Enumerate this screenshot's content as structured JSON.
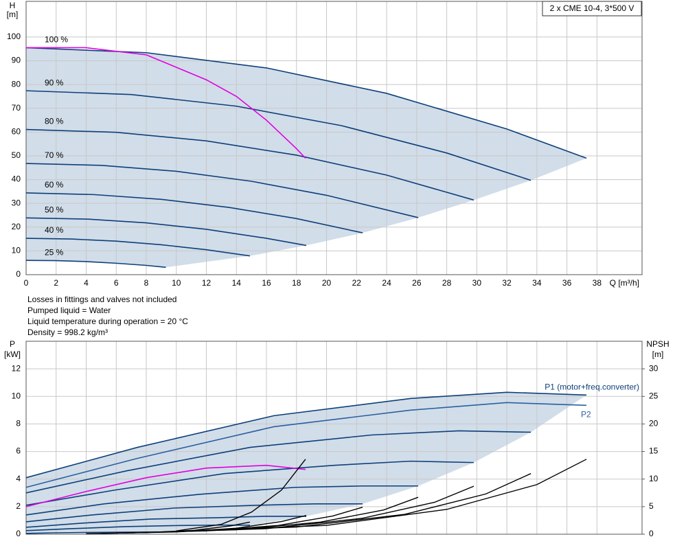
{
  "chart_data": [
    {
      "type": "line",
      "y_label": "H",
      "y_unit": "[m]",
      "x_label": "Q [m³/h]",
      "annotation": "2 x CME 10-4, 3*500 V",
      "xlim": [
        0,
        41
      ],
      "xticks": [
        0,
        2,
        4,
        6,
        8,
        10,
        12,
        14,
        16,
        18,
        20,
        22,
        24,
        26,
        28,
        30,
        32,
        34,
        36,
        38
      ],
      "ylim": [
        0,
        115
      ],
      "yticks": [
        0,
        10,
        20,
        30,
        40,
        50,
        60,
        70,
        80,
        90,
        100
      ],
      "grid": true,
      "region_color": "#c9d7e5",
      "series": [
        {
          "name": "100 %",
          "color": "#0d3f7a",
          "x": [
            0,
            8,
            16,
            24,
            32,
            37.3
          ],
          "values": [
            95.5,
            93.4,
            87.0,
            76.3,
            61.3,
            49.0
          ]
        },
        {
          "name": "90 %",
          "color": "#0d3f7a",
          "x": [
            0,
            7,
            14,
            21,
            28,
            33.6
          ],
          "values": [
            77.4,
            75.8,
            70.9,
            62.7,
            51.2,
            39.7
          ]
        },
        {
          "name": "80 %",
          "color": "#0d3f7a",
          "x": [
            0,
            6,
            12,
            18,
            24,
            29.8
          ],
          "values": [
            61.1,
            59.9,
            56.3,
            50.3,
            41.9,
            31.4
          ]
        },
        {
          "name": "70 %",
          "color": "#0d3f7a",
          "x": [
            0,
            5,
            10,
            15,
            20,
            26.1
          ],
          "values": [
            46.8,
            46.0,
            43.5,
            39.3,
            33.4,
            24.0
          ]
        },
        {
          "name": "60 %",
          "color": "#0d3f7a",
          "x": [
            0,
            4.5,
            9,
            13.5,
            18,
            22.4
          ],
          "values": [
            34.4,
            33.7,
            31.7,
            28.3,
            23.6,
            17.6
          ]
        },
        {
          "name": "50 %",
          "color": "#0d3f7a",
          "x": [
            0,
            4,
            8,
            12,
            16,
            18.65
          ],
          "values": [
            23.9,
            23.4,
            21.8,
            19.1,
            15.3,
            12.3
          ]
        },
        {
          "name": "40 %",
          "color": "#0d3f7a",
          "x": [
            0,
            3,
            6,
            9,
            12,
            14.9
          ],
          "values": [
            15.3,
            15.0,
            14.1,
            12.6,
            10.5,
            7.9
          ]
        },
        {
          "name": "25 %",
          "color": "#0d3f7a",
          "x": [
            0,
            2,
            4,
            6,
            8,
            9.3
          ],
          "values": [
            6.0,
            5.9,
            5.5,
            4.8,
            3.9,
            3.1
          ]
        },
        {
          "color": "#e000e0",
          "x": [
            0,
            4,
            8,
            12,
            14,
            16,
            18,
            18.6
          ],
          "values": [
            95.5,
            95.5,
            92.5,
            82,
            75,
            65,
            53,
            49
          ]
        }
      ]
    },
    {
      "type": "line",
      "y_label": "P",
      "y_unit": "[kW]",
      "y2_label": "NPSH",
      "y2_unit": "[m]",
      "xlim": [
        0,
        41
      ],
      "xticks": [
        0,
        2,
        4,
        6,
        8,
        10,
        12,
        14,
        16,
        18,
        20,
        22,
        24,
        26,
        28,
        30,
        32,
        34,
        36,
        38
      ],
      "ylim": [
        0,
        14
      ],
      "yticks": [
        0,
        2,
        4,
        6,
        8,
        10,
        12
      ],
      "y2lim": [
        0,
        35
      ],
      "y2ticks": [
        0,
        5,
        10,
        15,
        20,
        25,
        30
      ],
      "grid": true,
      "region_color": "#c9d7e5",
      "series": [
        {
          "name": "P1 (motor+freq.converter)",
          "color": "#0d3f7a",
          "x": [
            0,
            7.4,
            16.5,
            25.6,
            32,
            37.3
          ],
          "values": [
            4.1,
            6.3,
            8.6,
            9.85,
            10.3,
            10.1
          ]
        },
        {
          "color": "#0d3f7a",
          "x": [
            0,
            6.7,
            14.9,
            23.0,
            28.8,
            33.6
          ],
          "values": [
            3.0,
            4.6,
            6.3,
            7.2,
            7.5,
            7.4
          ]
        },
        {
          "color": "#0d3f7a",
          "x": [
            0,
            5.9,
            13.2,
            20.5,
            25.6,
            29.8
          ],
          "values": [
            2.1,
            3.2,
            4.4,
            5.0,
            5.3,
            5.2
          ]
        },
        {
          "color": "#0d3f7a",
          "x": [
            0,
            5.2,
            11.6,
            17.9,
            22.4,
            26.1
          ],
          "values": [
            1.4,
            2.2,
            2.9,
            3.4,
            3.5,
            3.5
          ]
        },
        {
          "color": "#0d3f7a",
          "x": [
            0,
            4.4,
            9.9,
            15.4,
            19.2,
            22.4
          ],
          "values": [
            0.9,
            1.4,
            1.9,
            2.1,
            2.2,
            2.2
          ]
        },
        {
          "color": "#0d3f7a",
          "x": [
            0,
            3.7,
            8.3,
            12.8,
            16,
            18.65
          ],
          "values": [
            0.5,
            0.8,
            1.1,
            1.2,
            1.3,
            1.3
          ]
        },
        {
          "color": "#0d3f7a",
          "x": [
            0,
            3.0,
            6.6,
            10.2,
            12.8,
            14.9
          ],
          "values": [
            0.26,
            0.4,
            0.55,
            0.63,
            0.66,
            0.65
          ]
        },
        {
          "color": "#0d3f7a",
          "x": [
            0,
            1.9,
            4.1,
            6.4,
            8,
            9.3
          ],
          "values": [
            0.06,
            0.1,
            0.13,
            0.15,
            0.16,
            0.16
          ]
        },
        {
          "name": "P2",
          "color": "#2a5f9e",
          "x": [
            0,
            7.4,
            16.5,
            25.6,
            32,
            37.3
          ],
          "values": [
            3.4,
            5.5,
            7.8,
            9.0,
            9.55,
            9.35
          ]
        },
        {
          "color": "#e000e0",
          "x": [
            0,
            4,
            8,
            12,
            16,
            18.6
          ],
          "values": [
            2.0,
            3.1,
            4.1,
            4.8,
            5.0,
            4.7
          ]
        },
        {
          "color": "#000000",
          "axis": "y2",
          "x": [
            10,
            20,
            28,
            34,
            37.3
          ],
          "values": [
            0.5,
            1.6,
            4.5,
            9,
            13.6
          ]
        },
        {
          "color": "#000000",
          "axis": "y2",
          "x": [
            9,
            18,
            25.2,
            30.6,
            33.6
          ],
          "values": [
            0.4,
            1.3,
            3.6,
            7.3,
            11.0
          ]
        },
        {
          "color": "#000000",
          "axis": "y2",
          "x": [
            8,
            16,
            22.4,
            27.2,
            29.8
          ],
          "values": [
            0.3,
            1.0,
            2.9,
            5.8,
            8.7
          ]
        },
        {
          "color": "#000000",
          "axis": "y2",
          "x": [
            7,
            14,
            19.6,
            23.8,
            26.1
          ],
          "values": [
            0.25,
            0.8,
            2.2,
            4.4,
            6.7
          ]
        },
        {
          "color": "#000000",
          "axis": "y2",
          "x": [
            6,
            12,
            16.8,
            20.4,
            22.4
          ],
          "values": [
            0.2,
            0.6,
            1.6,
            3.3,
            4.9
          ]
        },
        {
          "color": "#000000",
          "axis": "y2",
          "x": [
            5,
            10,
            14,
            17,
            18.65
          ],
          "values": [
            0.15,
            0.4,
            1.1,
            2.3,
            3.4
          ]
        },
        {
          "color": "#000000",
          "axis": "y2",
          "x": [
            4,
            8,
            11.2,
            13.6,
            14.9
          ],
          "values": [
            0.1,
            0.3,
            0.7,
            1.5,
            2.2
          ]
        },
        {
          "color": "#000000",
          "axis": "y2",
          "x": [
            10,
            13,
            15,
            17,
            18.6
          ],
          "values": [
            0.6,
            1.8,
            4.0,
            8.0,
            13.6
          ]
        }
      ]
    }
  ],
  "notes": [
    "Losses in fittings and valves not included",
    "Pumped liquid = Water",
    "Liquid temperature during operation = 20 °C",
    "Density = 998.2 kg/m³"
  ]
}
